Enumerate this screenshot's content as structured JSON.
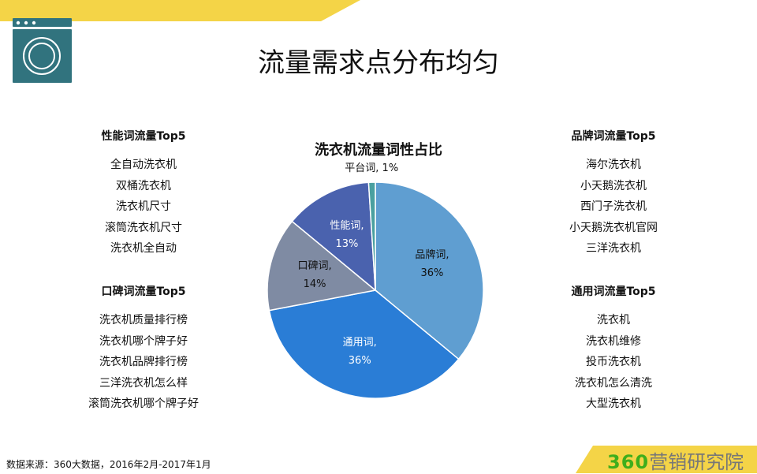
{
  "title": "流量需求点分布均匀",
  "icon": "washing-machine-icon",
  "colors": {
    "accent_yellow": "#f4d447",
    "icon_teal": "#31737e",
    "logo_green": "#3fae1c"
  },
  "left_groups": [
    {
      "heading": "性能词流量Top5",
      "items": [
        "全自动洗衣机",
        "双桶洗衣机",
        "洗衣机尺寸",
        "滚筒洗衣机尺寸",
        "洗衣机全自动"
      ]
    },
    {
      "heading": "口碑词流量Top5",
      "items": [
        "洗衣机质量排行榜",
        "洗衣机哪个牌子好",
        "洗衣机品牌排行榜",
        "三洋洗衣机怎么样",
        "滚筒洗衣机哪个牌子好"
      ]
    }
  ],
  "right_groups": [
    {
      "heading": "品牌词流量Top5",
      "items": [
        "海尔洗衣机",
        "小天鹅洗衣机",
        "西门子洗衣机",
        "小天鹅洗衣机官网",
        "三洋洗衣机"
      ]
    },
    {
      "heading": "通用词流量Top5",
      "items": [
        "洗衣机",
        "洗衣机维修",
        "投币洗衣机",
        "洗衣机怎么清洗",
        "大型洗衣机"
      ]
    }
  ],
  "chart_data": {
    "type": "pie",
    "title": "洗衣机流量词性占比",
    "start": "top, clockwise",
    "slices": [
      {
        "label": "品牌词",
        "value": 36,
        "text": "36%",
        "color": "#5f9ed1",
        "label_color": "#111"
      },
      {
        "label": "通用词",
        "value": 36,
        "text": "36%",
        "color": "#2a7dd6",
        "label_color": "#fff"
      },
      {
        "label": "口碑词",
        "value": 14,
        "text": "14%",
        "color": "#7f8ba3",
        "label_color": "#111"
      },
      {
        "label": "性能词",
        "value": 13,
        "text": "13%",
        "color": "#4a62ae",
        "label_color": "#fff"
      },
      {
        "label": "平台词",
        "value": 1,
        "text": "1%",
        "color": "#4aa0a0",
        "label_color": "#111"
      }
    ]
  },
  "footer": {
    "source": "数据来源：360大数据，2016年2月-2017年1月",
    "logo_number": "360",
    "logo_text": "营销研究院"
  }
}
